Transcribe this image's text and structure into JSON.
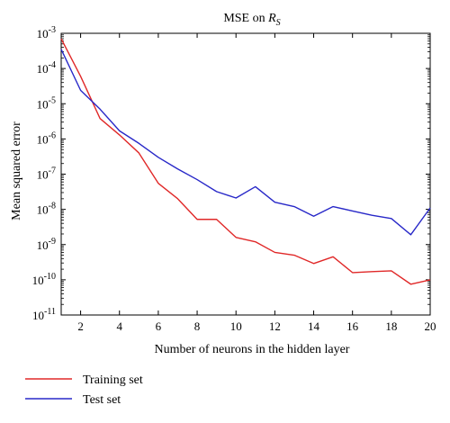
{
  "chart_data": {
    "type": "line",
    "title_main": "MSE on ",
    "title_symbol": "R",
    "title_subscript": "S",
    "xlabel": "Number of neurons in the hidden layer",
    "ylabel": "Mean squared error",
    "xlim": [
      1,
      20
    ],
    "ylim": [
      1e-11,
      0.001
    ],
    "yscale": "log",
    "grid": false,
    "legend_position": "bottom-left",
    "x_ticks": [
      2,
      4,
      6,
      8,
      10,
      12,
      14,
      16,
      18,
      20
    ],
    "y_ticks": [
      {
        "exp": -11,
        "base": "10",
        "sup": "-11"
      },
      {
        "exp": -10,
        "base": "10",
        "sup": "-10"
      },
      {
        "exp": -9,
        "base": "10",
        "sup": "-9"
      },
      {
        "exp": -8,
        "base": "10",
        "sup": "-8"
      },
      {
        "exp": -7,
        "base": "10",
        "sup": "-7"
      },
      {
        "exp": -6,
        "base": "10",
        "sup": "-6"
      },
      {
        "exp": -5,
        "base": "10",
        "sup": "-5"
      },
      {
        "exp": -4,
        "base": "10",
        "sup": "-4"
      },
      {
        "exp": -3,
        "base": "10",
        "sup": "-3"
      }
    ],
    "x": [
      1,
      2,
      3,
      4,
      5,
      6,
      7,
      8,
      9,
      10,
      11,
      12,
      13,
      14,
      15,
      16,
      17,
      18,
      19,
      20
    ],
    "series": [
      {
        "name": "Training set",
        "color": "#e02828",
        "values": [
          0.0007,
          6e-05,
          3.8e-06,
          1.3e-06,
          4e-07,
          5.5e-08,
          2e-08,
          5.2e-09,
          5.2e-09,
          1.6e-09,
          1.2e-09,
          6e-10,
          5e-10,
          2.9e-10,
          4.5e-10,
          1.6e-10,
          1.7e-10,
          1.8e-10,
          7.5e-11,
          1e-10
        ]
      },
      {
        "name": "Test set",
        "color": "#2828c8",
        "values": [
          0.00035,
          2.4e-05,
          7e-06,
          1.7e-06,
          7.5e-07,
          3e-07,
          1.4e-07,
          7e-08,
          3.2e-08,
          2.1e-08,
          4.4e-08,
          1.6e-08,
          1.2e-08,
          6.4e-09,
          1.2e-08,
          9e-09,
          6.8e-09,
          5.5e-09,
          1.9e-09,
          1.1e-08
        ]
      }
    ]
  }
}
